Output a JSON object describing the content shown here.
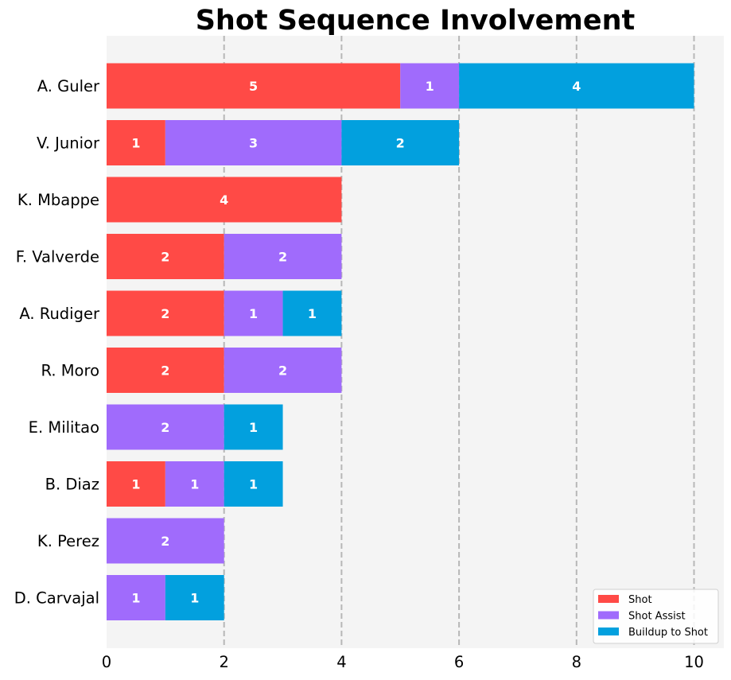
{
  "chart_data": {
    "type": "bar",
    "orientation": "horizontal",
    "stacked": true,
    "title": "Shot Sequence Involvement",
    "xlabel": "",
    "ylabel": "",
    "xlim": [
      0,
      10.5
    ],
    "xticks": [
      0,
      2,
      4,
      6,
      8,
      10
    ],
    "grid": "x-dashed",
    "legend_position": "bottom-right",
    "categories": [
      "A. Guler",
      "V. Junior",
      "K. Mbappe",
      "F. Valverde",
      "A. Rudiger",
      "R. Moro",
      "E. Militao",
      "B. Diaz",
      "K. Perez",
      "D. Carvajal"
    ],
    "series": [
      {
        "name": "Shot",
        "color": "#ff4a46",
        "values": [
          5,
          1,
          4,
          2,
          2,
          2,
          0,
          1,
          0,
          0
        ]
      },
      {
        "name": "Shot Assist",
        "color": "#a06bfc",
        "values": [
          1,
          3,
          0,
          2,
          1,
          2,
          2,
          1,
          2,
          1
        ]
      },
      {
        "name": "Buildup to Shot",
        "color": "#02a0de",
        "values": [
          4,
          2,
          0,
          0,
          1,
          0,
          1,
          1,
          0,
          1
        ]
      }
    ],
    "colors": {
      "plot_background": "#f4f4f4",
      "grid": "#b7b7b7"
    }
  }
}
